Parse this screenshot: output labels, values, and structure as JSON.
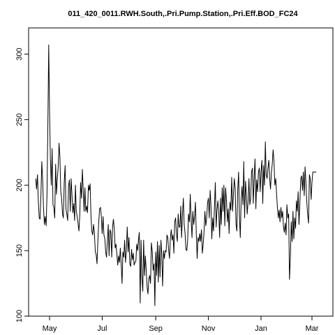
{
  "chart_data": {
    "type": "line",
    "title": "011_420_0011.RWH.South,.Pri.Pump.Station,.Pri.Eff.BOD_FC24",
    "xlabel": "",
    "ylabel": "",
    "xlim": [
      -7,
      298
    ],
    "ylim": [
      100,
      320
    ],
    "x_ticks": [
      {
        "label": "May",
        "value": 0
      },
      {
        "label": "Jul",
        "value": 61
      },
      {
        "label": "Sep",
        "value": 123
      },
      {
        "label": "Nov",
        "value": 184
      },
      {
        "label": "Jan",
        "value": 245
      },
      {
        "label": "Mar",
        "value": 304
      }
    ],
    "y_ticks": [
      100,
      150,
      200,
      250,
      300
    ],
    "grid": false,
    "series": [
      {
        "values": [
          [
            -16,
            205
          ],
          [
            -15,
            197
          ],
          [
            -14,
            208
          ],
          [
            -13,
            188
          ],
          [
            -12,
            175
          ],
          [
            -11,
            174
          ],
          [
            -10,
            192
          ],
          [
            -9,
            218
          ],
          [
            -8,
            204
          ],
          [
            -7,
            183
          ],
          [
            -6,
            170
          ],
          [
            -5,
            176
          ],
          [
            -4,
            169
          ],
          [
            -3,
            192
          ],
          [
            -2,
            242
          ],
          [
            -1,
            307
          ],
          [
            0,
            256
          ],
          [
            1,
            220
          ],
          [
            2,
            200
          ],
          [
            3,
            228
          ],
          [
            4,
            185
          ],
          [
            5,
            183
          ],
          [
            6,
            175
          ],
          [
            7,
            216
          ],
          [
            8,
            193
          ],
          [
            9,
            205
          ],
          [
            10,
            214
          ],
          [
            11,
            232
          ],
          [
            12,
            222
          ],
          [
            13,
            195
          ],
          [
            14,
            190
          ],
          [
            15,
            178
          ],
          [
            16,
            175
          ],
          [
            17,
            202
          ],
          [
            18,
            215
          ],
          [
            19,
            182
          ],
          [
            20,
            178
          ],
          [
            21,
            173
          ],
          [
            22,
            199
          ],
          [
            23,
            204
          ],
          [
            24,
            180
          ],
          [
            25,
            205
          ],
          [
            26,
            192
          ],
          [
            27,
            179
          ],
          [
            28,
            186
          ],
          [
            29,
            173
          ],
          [
            30,
            200
          ],
          [
            31,
            180
          ],
          [
            32,
            176
          ],
          [
            33,
            171
          ],
          [
            34,
            165
          ],
          [
            35,
            177
          ],
          [
            36,
            202
          ],
          [
            37,
            190
          ],
          [
            38,
            212
          ],
          [
            39,
            197
          ],
          [
            40,
            180
          ],
          [
            41,
            198
          ],
          [
            42,
            180
          ],
          [
            43,
            184
          ],
          [
            44,
            179
          ],
          [
            45,
            200
          ],
          [
            46,
            196
          ],
          [
            47,
            201
          ],
          [
            48,
            176
          ],
          [
            49,
            165
          ],
          [
            50,
            162
          ],
          [
            51,
            170
          ],
          [
            52,
            163
          ],
          [
            53,
            149
          ],
          [
            54,
            147
          ],
          [
            55,
            140
          ],
          [
            56,
            158
          ],
          [
            57,
            172
          ],
          [
            58,
            182
          ],
          [
            59,
            183
          ],
          [
            60,
            176
          ],
          [
            61,
            163
          ],
          [
            62,
            176
          ],
          [
            63,
            162
          ],
          [
            64,
            159
          ],
          [
            65,
            149
          ],
          [
            66,
            145
          ],
          [
            67,
            158
          ],
          [
            68,
            170
          ],
          [
            69,
            146
          ],
          [
            70,
            166
          ],
          [
            71,
            164
          ],
          [
            72,
            145
          ],
          [
            73,
            168
          ],
          [
            74,
            174
          ],
          [
            75,
            166
          ],
          [
            76,
            152
          ],
          [
            77,
            155
          ],
          [
            78,
            147
          ],
          [
            79,
            139
          ],
          [
            80,
            146
          ],
          [
            81,
            141
          ],
          [
            82,
            152
          ],
          [
            83,
            139
          ],
          [
            84,
            125
          ],
          [
            85,
            149
          ],
          [
            86,
            145
          ],
          [
            87,
            158
          ],
          [
            88,
            141
          ],
          [
            89,
            150
          ],
          [
            90,
            168
          ],
          [
            91,
            149
          ],
          [
            92,
            160
          ],
          [
            93,
            140
          ],
          [
            94,
            138
          ],
          [
            95,
            151
          ],
          [
            96,
            143
          ],
          [
            97,
            148
          ],
          [
            98,
            139
          ],
          [
            99,
            141
          ],
          [
            100,
            142
          ],
          [
            101,
            155
          ],
          [
            102,
            150
          ],
          [
            103,
            158
          ],
          [
            104,
            164
          ],
          [
            105,
            110
          ],
          [
            106,
            158
          ],
          [
            107,
            130
          ],
          [
            108,
            119
          ],
          [
            109,
            158
          ],
          [
            110,
            131
          ],
          [
            111,
            146
          ],
          [
            112,
            135
          ],
          [
            113,
            122
          ],
          [
            114,
            117
          ],
          [
            115,
            128
          ],
          [
            116,
            131
          ],
          [
            117,
            125
          ],
          [
            118,
            156
          ],
          [
            119,
            149
          ],
          [
            120,
            135
          ],
          [
            121,
            140
          ],
          [
            122,
            108
          ],
          [
            123,
            149
          ],
          [
            124,
            131
          ],
          [
            125,
            157
          ],
          [
            126,
            126
          ],
          [
            127,
            154
          ],
          [
            128,
            130
          ],
          [
            129,
            158
          ],
          [
            130,
            147
          ],
          [
            131,
            123
          ],
          [
            132,
            150
          ],
          [
            133,
            144
          ],
          [
            134,
            150
          ],
          [
            135,
            149
          ],
          [
            136,
            162
          ],
          [
            137,
            160
          ],
          [
            138,
            150
          ],
          [
            139,
            144
          ],
          [
            140,
            160
          ],
          [
            141,
            166
          ],
          [
            142,
            158
          ],
          [
            143,
            162
          ],
          [
            144,
            148
          ],
          [
            145,
            172
          ],
          [
            146,
            175
          ],
          [
            147,
            163
          ],
          [
            148,
            157
          ],
          [
            149,
            178
          ],
          [
            150,
            168
          ],
          [
            151,
            168
          ],
          [
            152,
            184
          ],
          [
            153,
            160
          ],
          [
            154,
            178
          ],
          [
            155,
            190
          ],
          [
            156,
            170
          ],
          [
            157,
            163
          ],
          [
            158,
            151
          ],
          [
            159,
            150
          ],
          [
            160,
            158
          ],
          [
            161,
            178
          ],
          [
            162,
            172
          ],
          [
            163,
            193
          ],
          [
            164,
            174
          ],
          [
            165,
            160
          ],
          [
            166,
            180
          ],
          [
            167,
            170
          ],
          [
            168,
            176
          ],
          [
            169,
            187
          ],
          [
            170,
            162
          ],
          [
            171,
            144
          ],
          [
            172,
            160
          ],
          [
            173,
            157
          ],
          [
            174,
            163
          ],
          [
            175,
            157
          ],
          [
            176,
            166
          ],
          [
            177,
            148
          ],
          [
            178,
            155
          ],
          [
            179,
            165
          ],
          [
            180,
            180
          ],
          [
            181,
            169
          ],
          [
            182,
            175
          ],
          [
            183,
            186
          ],
          [
            184,
            190
          ],
          [
            185,
            175
          ],
          [
            186,
            196
          ],
          [
            187,
            184
          ],
          [
            188,
            159
          ],
          [
            189,
            175
          ],
          [
            190,
            165
          ],
          [
            191,
            182
          ],
          [
            192,
            202
          ],
          [
            193,
            168
          ],
          [
            194,
            181
          ],
          [
            195,
            188
          ],
          [
            196,
            180
          ],
          [
            197,
            160
          ],
          [
            198,
            190
          ],
          [
            199,
            170
          ],
          [
            200,
            198
          ],
          [
            201,
            180
          ],
          [
            202,
            200
          ],
          [
            203,
            169
          ],
          [
            204,
            198
          ],
          [
            205,
            187
          ],
          [
            206,
            172
          ],
          [
            207,
            182
          ],
          [
            208,
            163
          ],
          [
            209,
            187
          ],
          [
            210,
            181
          ],
          [
            211,
            206
          ],
          [
            212,
            180
          ],
          [
            213,
            192
          ],
          [
            214,
            205
          ],
          [
            215,
            198
          ],
          [
            216,
            170
          ],
          [
            217,
            165
          ],
          [
            218,
            196
          ],
          [
            219,
            210
          ],
          [
            220,
            176
          ],
          [
            221,
            160
          ],
          [
            222,
            190
          ],
          [
            223,
            199
          ],
          [
            224,
            185
          ],
          [
            225,
            218
          ],
          [
            226,
            175
          ],
          [
            227,
            203
          ],
          [
            228,
            192
          ],
          [
            229,
            178
          ],
          [
            230,
            188
          ],
          [
            231,
            205
          ],
          [
            232,
            185
          ],
          [
            233,
            190
          ],
          [
            234,
            210
          ],
          [
            235,
            213
          ],
          [
            236,
            186
          ],
          [
            237,
            205
          ],
          [
            238,
            220
          ],
          [
            239,
            182
          ],
          [
            240,
            204
          ],
          [
            241,
            195
          ],
          [
            242,
            210
          ],
          [
            243,
            213
          ],
          [
            244,
            195
          ],
          [
            245,
            210
          ],
          [
            246,
            219
          ],
          [
            247,
            186
          ],
          [
            248,
            215
          ],
          [
            249,
            200
          ],
          [
            250,
            233
          ],
          [
            251,
            208
          ],
          [
            252,
            205
          ],
          [
            253,
            213
          ],
          [
            254,
            219
          ],
          [
            255,
            205
          ],
          [
            256,
            197
          ],
          [
            257,
            210
          ],
          [
            258,
            216
          ],
          [
            259,
            227
          ],
          [
            260,
            218
          ],
          [
            261,
            200
          ],
          [
            262,
            205
          ],
          [
            263,
            193
          ],
          [
            264,
            183
          ],
          [
            265,
            175
          ],
          [
            266,
            181
          ],
          [
            267,
            172
          ],
          [
            268,
            183
          ],
          [
            269,
            175
          ],
          [
            270,
            180
          ],
          [
            271,
            168
          ],
          [
            272,
            164
          ],
          [
            273,
            171
          ],
          [
            274,
            162
          ],
          [
            275,
            185
          ],
          [
            276,
            175
          ],
          [
            277,
            178
          ],
          [
            278,
            128
          ],
          [
            279,
            145
          ],
          [
            280,
            172
          ],
          [
            281,
            157
          ],
          [
            282,
            180
          ],
          [
            283,
            159
          ],
          [
            284,
            175
          ],
          [
            285,
            167
          ],
          [
            286,
            188
          ],
          [
            287,
            180
          ],
          [
            288,
            195
          ],
          [
            289,
            170
          ],
          [
            290,
            187
          ],
          [
            291,
            205
          ],
          [
            292,
            207
          ],
          [
            293,
            196
          ],
          [
            294,
            210
          ],
          [
            295,
            192
          ],
          [
            296,
            214
          ],
          [
            297,
            202
          ],
          [
            298,
            187
          ],
          [
            299,
            178
          ],
          [
            300,
            171
          ],
          [
            301,
            208
          ],
          [
            302,
            205
          ],
          [
            303,
            189
          ],
          [
            304,
            202
          ],
          [
            305,
            210
          ],
          [
            306,
            210
          ],
          [
            307,
            210
          ],
          [
            308,
            210
          ],
          [
            309,
            210
          ]
        ]
      }
    ]
  }
}
